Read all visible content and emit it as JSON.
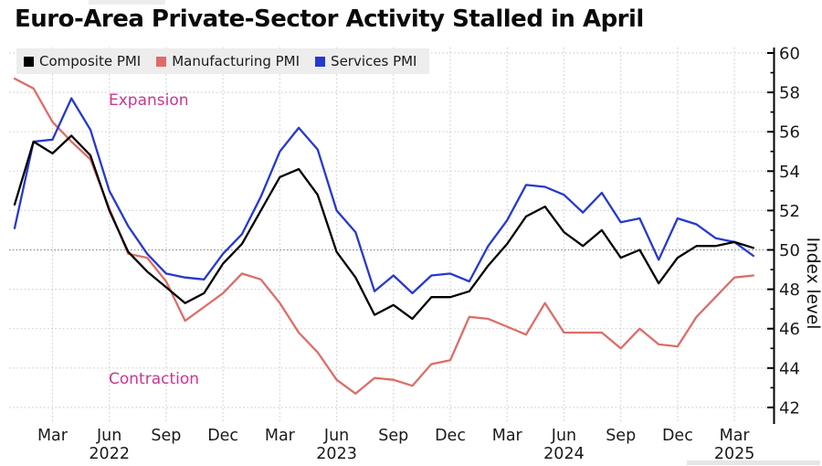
{
  "title": "Euro-Area Private-Sector Activity Stalled in April",
  "annotations": {
    "expansion": "Expansion",
    "contraction": "Contraction"
  },
  "legend": [
    {
      "label": "Composite PMI",
      "color": "#000000"
    },
    {
      "label": "Manufacturing PMI",
      "color": "#e06b66"
    },
    {
      "label": "Services PMI",
      "color": "#2639cd"
    }
  ],
  "colors": {
    "composite": "#000000",
    "manufacturing": "#dd6d68",
    "services": "#2639cd",
    "annotation": "#c9368f",
    "grid": "#d2d2d2",
    "reference_line": "#8e8e8e",
    "axis": "#000000",
    "tick_text": "#1a1a1a",
    "legend_bg": "#ededed"
  },
  "chart_data": {
    "type": "line",
    "title": "Euro-Area Private-Sector Activity Stalled in April",
    "xlabel": "",
    "ylabel": "Index level",
    "ylim": [
      41.2,
      60.3
    ],
    "grid": true,
    "legend_position": "top-left",
    "reference_line": 50,
    "y_ticks_major": [
      60,
      58,
      56,
      54,
      52,
      50,
      48,
      46,
      44,
      42
    ],
    "y_ticks_minor": [
      59,
      57,
      55,
      53,
      51,
      49,
      47,
      45,
      43
    ],
    "x": [
      "Jan 2022",
      "Feb 2022",
      "Mar 2022",
      "Apr 2022",
      "May 2022",
      "Jun 2022",
      "Jul 2022",
      "Aug 2022",
      "Sep 2022",
      "Oct 2022",
      "Nov 2022",
      "Dec 2022",
      "Jan 2023",
      "Feb 2023",
      "Mar 2023",
      "Apr 2023",
      "May 2023",
      "Jun 2023",
      "Jul 2023",
      "Aug 2023",
      "Sep 2023",
      "Oct 2023",
      "Nov 2023",
      "Dec 2023",
      "Jan 2024",
      "Feb 2024",
      "Mar 2024",
      "Apr 2024",
      "May 2024",
      "Jun 2024",
      "Jul 2024",
      "Aug 2024",
      "Sep 2024",
      "Oct 2024",
      "Nov 2024",
      "Dec 2024",
      "Jan 2025",
      "Feb 2025",
      "Mar 2025",
      "Apr 2025"
    ],
    "x_ticks": [
      {
        "m": 2,
        "label": "Mar"
      },
      {
        "m": 5,
        "label": "Jun",
        "year": "2022"
      },
      {
        "m": 8,
        "label": "Sep"
      },
      {
        "m": 11,
        "label": "Dec"
      },
      {
        "m": 14,
        "label": "Mar"
      },
      {
        "m": 17,
        "label": "Jun",
        "year": "2023"
      },
      {
        "m": 20,
        "label": "Sep"
      },
      {
        "m": 23,
        "label": "Dec"
      },
      {
        "m": 26,
        "label": "Mar"
      },
      {
        "m": 29,
        "label": "Jun",
        "year": "2024"
      },
      {
        "m": 32,
        "label": "Sep"
      },
      {
        "m": 35,
        "label": "Dec"
      },
      {
        "m": 38,
        "label": "Mar",
        "year": "2025"
      }
    ],
    "series": [
      {
        "name": "Manufacturing PMI",
        "key": "manufacturing",
        "values": [
          58.7,
          58.2,
          56.5,
          55.5,
          54.6,
          52.1,
          49.8,
          49.6,
          48.4,
          46.4,
          47.1,
          47.8,
          48.8,
          48.5,
          47.3,
          45.8,
          44.8,
          43.4,
          42.7,
          43.5,
          43.4,
          43.1,
          44.2,
          44.4,
          46.6,
          46.5,
          46.1,
          45.7,
          47.3,
          45.8,
          45.8,
          45.8,
          45.0,
          46.0,
          45.2,
          45.1,
          46.6,
          47.6,
          48.6,
          48.7
        ]
      },
      {
        "name": "Services PMI",
        "key": "services",
        "values": [
          51.1,
          55.5,
          55.6,
          57.7,
          56.1,
          53.0,
          51.2,
          49.8,
          48.8,
          48.6,
          48.5,
          49.8,
          50.8,
          52.7,
          55.0,
          56.2,
          55.1,
          52.0,
          50.9,
          47.9,
          48.7,
          47.8,
          48.7,
          48.8,
          48.4,
          50.2,
          51.5,
          53.3,
          53.2,
          52.8,
          51.9,
          52.9,
          51.4,
          51.6,
          49.5,
          51.6,
          51.3,
          50.6,
          50.4,
          49.7
        ]
      },
      {
        "name": "Composite PMI",
        "key": "composite",
        "values": [
          52.3,
          55.5,
          54.9,
          55.8,
          54.8,
          52.0,
          49.9,
          48.9,
          48.1,
          47.3,
          47.8,
          49.3,
          50.3,
          52.0,
          53.7,
          54.1,
          52.8,
          49.9,
          48.6,
          46.7,
          47.2,
          46.5,
          47.6,
          47.6,
          47.9,
          49.2,
          50.3,
          51.7,
          52.2,
          50.9,
          50.2,
          51.0,
          49.6,
          50.0,
          48.3,
          49.6,
          50.2,
          50.2,
          50.4,
          50.1
        ]
      }
    ]
  }
}
